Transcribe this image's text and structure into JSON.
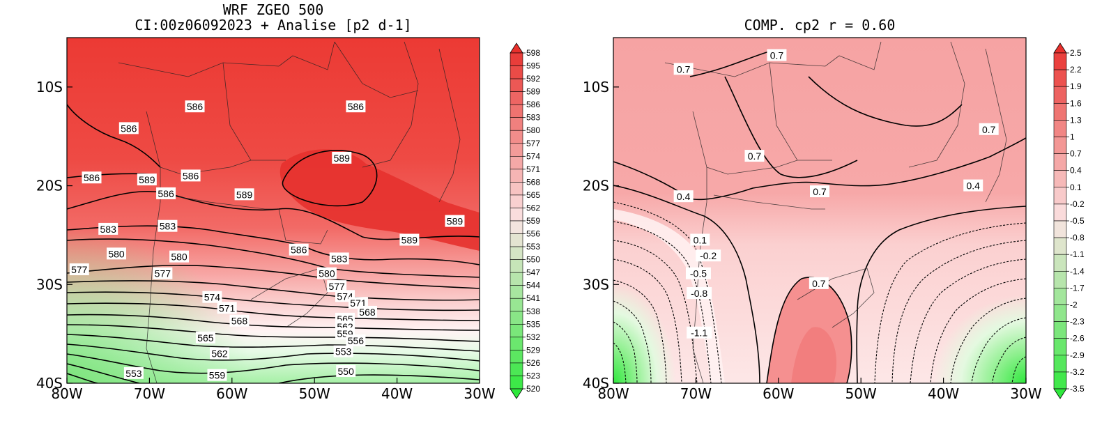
{
  "colors": {
    "red_deep": "#e8302c",
    "pink_pale": "#fbe4e4",
    "green_bright": "#2ee83c",
    "contour": "#000000"
  },
  "left_panel": {
    "title_line1": "WRF ZGEO 500",
    "title_line2": "CI:00z06092023 + Analise  [p2 d-1]",
    "x_ticks": [
      "80W",
      "70W",
      "60W",
      "50W",
      "40W",
      "30W"
    ],
    "y_ticks": [
      "10S",
      "20S",
      "30S",
      "40S"
    ],
    "colorbar_labels": [
      "598",
      "595",
      "592",
      "589",
      "586",
      "583",
      "580",
      "577",
      "574",
      "571",
      "568",
      "565",
      "562",
      "559",
      "556",
      "553",
      "550",
      "547",
      "544",
      "541",
      "538",
      "535",
      "532",
      "529",
      "526",
      "523",
      "520"
    ],
    "contour_labels": [
      {
        "text": "586",
        "lon": -64.5,
        "lat": -12.0
      },
      {
        "text": "586",
        "lon": -45.0,
        "lat": -12.0
      },
      {
        "text": "586",
        "lon": -72.5,
        "lat": -14.2
      },
      {
        "text": "586",
        "lon": -77.0,
        "lat": -19.2
      },
      {
        "text": "589",
        "lon": -70.3,
        "lat": -19.4
      },
      {
        "text": "586",
        "lon": -65.0,
        "lat": -19.0
      },
      {
        "text": "586",
        "lon": -68.0,
        "lat": -20.8
      },
      {
        "text": "589",
        "lon": -46.7,
        "lat": -17.2
      },
      {
        "text": "589",
        "lon": -58.5,
        "lat": -20.9
      },
      {
        "text": "583",
        "lon": -75.0,
        "lat": -24.4
      },
      {
        "text": "583",
        "lon": -67.8,
        "lat": -24.1
      },
      {
        "text": "589",
        "lon": -33.0,
        "lat": -23.6
      },
      {
        "text": "589",
        "lon": -38.5,
        "lat": -25.5
      },
      {
        "text": "586",
        "lon": -51.9,
        "lat": -26.5
      },
      {
        "text": "580",
        "lon": -74.0,
        "lat": -26.9
      },
      {
        "text": "580",
        "lon": -66.4,
        "lat": -27.2
      },
      {
        "text": "583",
        "lon": -47.0,
        "lat": -27.4
      },
      {
        "text": "577",
        "lon": -78.5,
        "lat": -28.5
      },
      {
        "text": "577",
        "lon": -68.4,
        "lat": -28.9
      },
      {
        "text": "580",
        "lon": -48.5,
        "lat": -28.9
      },
      {
        "text": "577",
        "lon": -47.3,
        "lat": -30.2
      },
      {
        "text": "574",
        "lon": -46.3,
        "lat": -31.2
      },
      {
        "text": "574",
        "lon": -62.4,
        "lat": -31.3
      },
      {
        "text": "571",
        "lon": -44.7,
        "lat": -31.9
      },
      {
        "text": "571",
        "lon": -60.6,
        "lat": -32.4
      },
      {
        "text": "568",
        "lon": -43.6,
        "lat": -32.8
      },
      {
        "text": "568",
        "lon": -59.1,
        "lat": -33.7
      },
      {
        "text": "565",
        "lon": -46.3,
        "lat": -33.5
      },
      {
        "text": "565",
        "lon": -63.2,
        "lat": -35.4
      },
      {
        "text": "562",
        "lon": -46.3,
        "lat": -34.3
      },
      {
        "text": "562",
        "lon": -61.5,
        "lat": -37.0
      },
      {
        "text": "559",
        "lon": -46.3,
        "lat": -35.0
      },
      {
        "text": "556",
        "lon": -45.0,
        "lat": -35.7
      },
      {
        "text": "553",
        "lon": -71.9,
        "lat": -39.0
      },
      {
        "text": "553",
        "lon": -46.5,
        "lat": -36.8
      },
      {
        "text": "559",
        "lon": -61.8,
        "lat": -39.2
      },
      {
        "text": "550",
        "lon": -46.2,
        "lat": -38.8
      }
    ]
  },
  "right_panel": {
    "title": "COMP. cp2  r =  0.60",
    "x_ticks": [
      "80W",
      "70W",
      "60W",
      "50W",
      "40W",
      "30W"
    ],
    "y_ticks": [
      "10S",
      "20S",
      "30S",
      "40S"
    ],
    "colorbar_labels": [
      "2.5",
      "2.2",
      "1.9",
      "1.6",
      "1.3",
      "1",
      "0.7",
      "0.4",
      "0.1",
      "-0.2",
      "-0.5",
      "-0.8",
      "-1.1",
      "-1.4",
      "-1.7",
      "-2",
      "-2.3",
      "-2.6",
      "-2.9",
      "-3.2",
      "-3.5"
    ],
    "contour_labels": [
      {
        "text": "0.7",
        "lon": -60.2,
        "lat": -6.8
      },
      {
        "text": "0.7",
        "lon": -71.5,
        "lat": -8.2
      },
      {
        "text": "0.7",
        "lon": -34.5,
        "lat": -14.3
      },
      {
        "text": "0.7",
        "lon": -62.9,
        "lat": -17.0
      },
      {
        "text": "0.7",
        "lon": -55.0,
        "lat": -20.6
      },
      {
        "text": "0.4",
        "lon": -36.4,
        "lat": -20.0
      },
      {
        "text": "0.4",
        "lon": -71.5,
        "lat": -21.1
      },
      {
        "text": "0.1",
        "lon": -69.5,
        "lat": -25.5
      },
      {
        "text": "-0.2",
        "lon": -68.5,
        "lat": -27.1
      },
      {
        "text": "-0.5",
        "lon": -69.7,
        "lat": -28.9
      },
      {
        "text": "-0.8",
        "lon": -69.6,
        "lat": -30.9
      },
      {
        "text": "0.7",
        "lon": -55.1,
        "lat": -29.9
      },
      {
        "text": "-1.1",
        "lon": -69.6,
        "lat": -34.9
      }
    ]
  }
}
